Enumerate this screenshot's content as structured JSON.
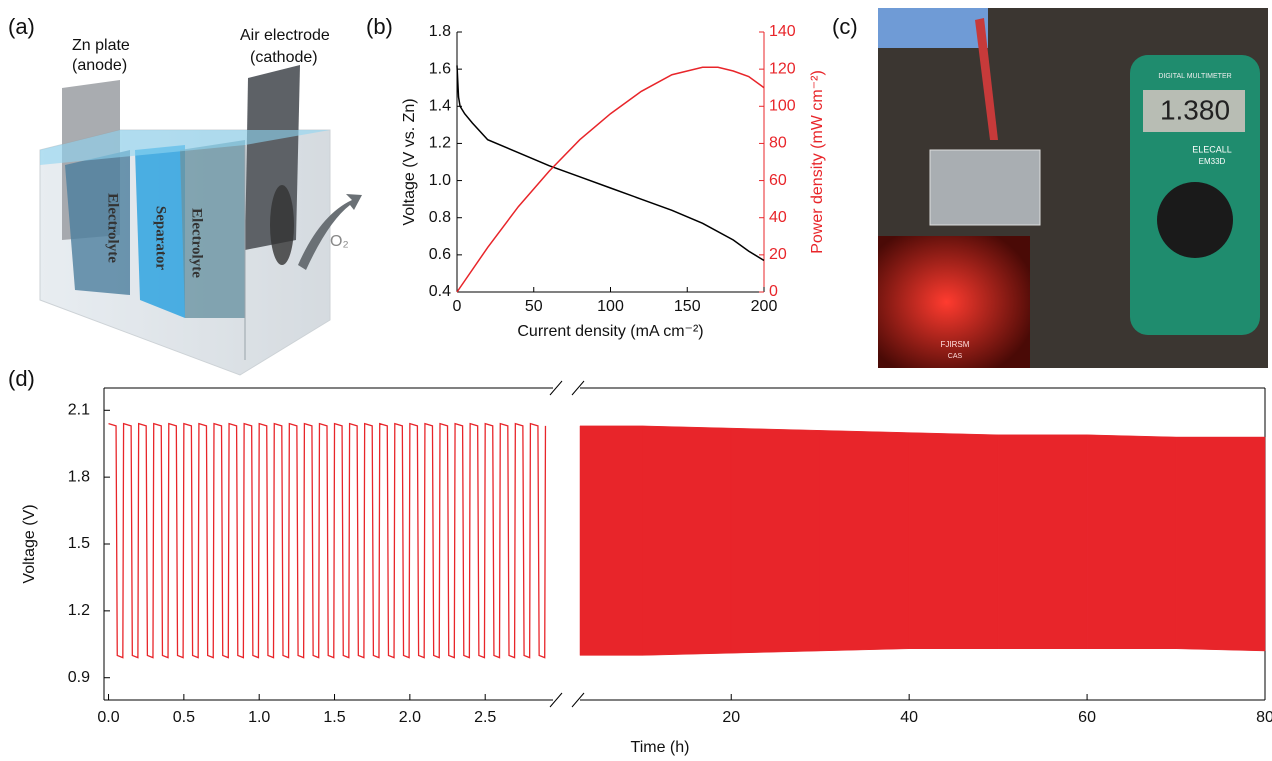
{
  "panel_labels": [
    "(a)",
    "(b)",
    "(c)",
    "(d)"
  ],
  "schematic": {
    "zn_plate": [
      "Zn plate",
      "(anode)"
    ],
    "air_electrode": [
      "Air electrode",
      "(cathode)"
    ],
    "electrolyte_left": "Electrolyte",
    "separator": "Separator",
    "electrolyte_right": "Electrolyte",
    "oxygen": "O₂"
  },
  "photo": {
    "meter_brand": "DIGITAL MULTIMETER",
    "display": "1.380",
    "maker": "ELECALL",
    "model": "EM33D",
    "logo": [
      "FJIRSM",
      "CAS"
    ]
  },
  "chart_data": [
    {
      "type": "dual-line",
      "xlabel": "Current density (mA cm⁻²)",
      "ylabel": "Voltage (V vs. Zn)",
      "y2label": "Power density (mW cm⁻²)",
      "xlim": [
        0,
        200
      ],
      "xticks": [
        0,
        50,
        100,
        150,
        200
      ],
      "ylim": [
        0.4,
        1.8
      ],
      "yticks": [
        0.4,
        0.6,
        0.8,
        {
          "value": 1,
          "label": "1.0"
        },
        1.2,
        1.4,
        1.6,
        1.8
      ],
      "y2lim": [
        0,
        140
      ],
      "y2ticks": [
        0,
        20,
        40,
        60,
        80,
        100,
        120,
        140
      ],
      "y2color": "#e8252a",
      "series": [
        {
          "color": "#000000",
          "x": [
            0,
            1,
            2,
            5,
            10,
            20,
            40,
            60,
            80,
            100,
            120,
            140,
            160,
            180,
            190,
            200
          ],
          "values": [
            1.62,
            1.45,
            1.4,
            1.36,
            1.31,
            1.22,
            1.15,
            1.08,
            1.02,
            0.96,
            0.9,
            0.84,
            0.77,
            0.68,
            0.62,
            0.57
          ]
        },
        {
          "color": "#e8252a",
          "axis": "y2",
          "x": [
            0,
            20,
            40,
            60,
            80,
            100,
            120,
            140,
            160,
            170,
            180,
            190,
            200
          ],
          "values": [
            0,
            24,
            46,
            65,
            82,
            96,
            108,
            117,
            121,
            121,
            119,
            116,
            110
          ]
        }
      ]
    },
    {
      "type": "broken-axis",
      "xlabel": "Time (h)",
      "ylabel": "Voltage (V)",
      "color": "#e8252a",
      "ylim": [
        0.8,
        2.2
      ],
      "yticks": [
        0.9,
        1.2,
        1.5,
        1.8,
        2.1
      ],
      "segments": [
        {
          "xlim": [
            -0.03,
            2.95
          ],
          "xticks": [
            {
              "value": 0,
              "label": "0.0"
            },
            0.5,
            {
              "value": 1,
              "label": "1.0"
            },
            1.5,
            {
              "value": 2,
              "label": "2.0"
            },
            2.5
          ],
          "x": [
            0,
            0.05,
            0.058,
            0.095,
            0.1,
            0.15,
            0.158,
            0.195,
            0.2,
            0.25,
            0.258,
            0.295,
            0.3,
            0.35,
            0.358,
            0.395,
            0.4,
            0.45,
            0.458,
            0.495,
            0.5,
            0.55,
            0.558,
            0.595,
            0.6,
            0.65,
            0.658,
            0.695,
            0.7,
            0.75,
            0.758,
            0.795,
            0.8,
            0.85,
            0.858,
            0.895,
            0.9,
            0.95,
            0.958,
            0.995,
            1.0,
            1.05,
            1.058,
            1.095,
            1.1,
            1.15,
            1.158,
            1.195,
            1.2,
            1.25,
            1.258,
            1.295,
            1.3,
            1.35,
            1.358,
            1.395,
            1.4,
            1.45,
            1.458,
            1.495,
            1.5,
            1.55,
            1.558,
            1.595,
            1.6,
            1.65,
            1.658,
            1.695,
            1.7,
            1.75,
            1.758,
            1.795,
            1.8,
            1.85,
            1.858,
            1.895,
            1.9,
            1.95,
            1.958,
            1.995,
            2.0,
            2.05,
            2.058,
            2.095,
            2.1,
            2.15,
            2.158,
            2.195,
            2.2,
            2.25,
            2.258,
            2.295,
            2.3,
            2.35,
            2.358,
            2.395,
            2.4,
            2.45,
            2.458,
            2.495,
            2.5,
            2.55,
            2.558,
            2.595,
            2.6,
            2.65,
            2.658,
            2.695,
            2.7,
            2.75,
            2.758,
            2.795,
            2.8,
            2.85,
            2.858,
            2.895,
            2.9
          ],
          "values": [
            2.04,
            2.03,
            1.0,
            0.99,
            2.04,
            2.03,
            1.0,
            0.99,
            2.04,
            2.03,
            1.0,
            0.99,
            2.04,
            2.03,
            1.0,
            0.99,
            2.04,
            2.03,
            1.0,
            0.99,
            2.04,
            2.03,
            1.0,
            0.99,
            2.04,
            2.03,
            1.0,
            0.99,
            2.04,
            2.03,
            1.0,
            0.99,
            2.04,
            2.03,
            1.0,
            0.99,
            2.04,
            2.03,
            1.0,
            0.99,
            2.04,
            2.03,
            1.0,
            0.99,
            2.04,
            2.03,
            1.0,
            0.99,
            2.04,
            2.03,
            1.0,
            0.99,
            2.04,
            2.03,
            1.0,
            0.99,
            2.04,
            2.03,
            1.0,
            0.99,
            2.04,
            2.03,
            1.0,
            0.99,
            2.04,
            2.03,
            1.0,
            0.99,
            2.04,
            2.03,
            1.0,
            0.99,
            2.04,
            2.03,
            1.0,
            0.99,
            2.04,
            2.03,
            1.0,
            0.99,
            2.04,
            2.03,
            1.0,
            0.99,
            2.04,
            2.03,
            1.0,
            0.99,
            2.04,
            2.03,
            1.0,
            0.99,
            2.04,
            2.03,
            1.0,
            0.99,
            2.04,
            2.03,
            1.0,
            0.99,
            2.04,
            2.03,
            1.0,
            0.99,
            2.04,
            2.03,
            1.0,
            0.99,
            2.04,
            2.03,
            1.0,
            0.99,
            2.04,
            2.03,
            1.0,
            0.99,
            2.03
          ]
        },
        {
          "xlim": [
            3,
            80
          ],
          "xticks": [
            20,
            40,
            60,
            80
          ],
          "x": [
            3,
            10,
            20,
            30,
            40,
            50,
            60,
            70,
            80
          ],
          "upper": [
            2.03,
            2.03,
            2.02,
            2.01,
            2.0,
            1.99,
            1.99,
            1.98,
            1.98
          ],
          "lower": [
            1.0,
            1.0,
            1.01,
            1.02,
            1.03,
            1.03,
            1.03,
            1.03,
            1.02
          ]
        }
      ]
    }
  ]
}
